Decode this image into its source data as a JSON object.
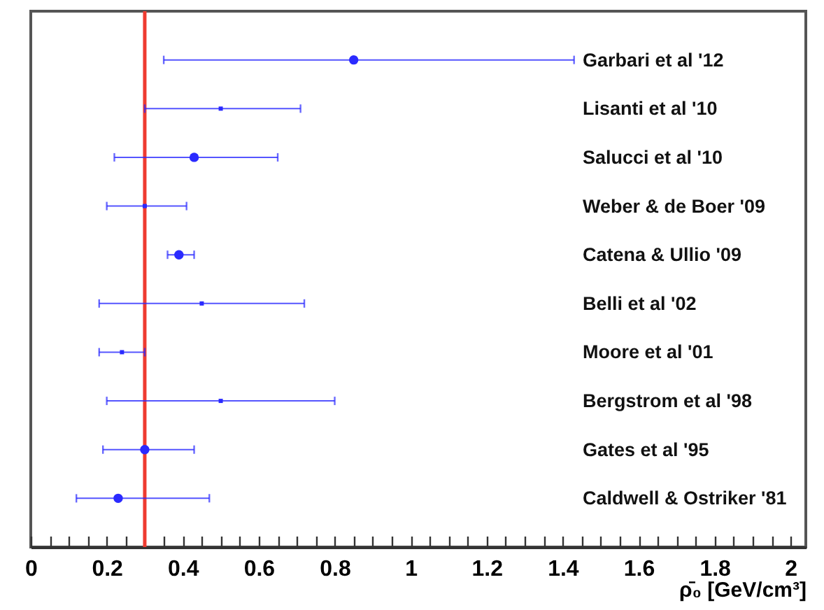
{
  "chart_data": {
    "type": "scatter",
    "xlabel": "ρ̄₀ [GeV/cm³]",
    "categories": [
      "Garbari et al '12",
      "Lisanti et al '10",
      "Salucci et al '10",
      "Weber & de Boer '09",
      "Catena & Ullio '09",
      "Belli et al '02",
      "Moore et al '01",
      "Bergstrom et al '98",
      "Gates et al '95",
      "Caldwell & Ostriker '81"
    ],
    "series": [
      {
        "color": "#2a2aff",
        "marker": "circle",
        "values": [
          0.85,
          null,
          0.43,
          null,
          0.39,
          null,
          null,
          null,
          0.3,
          0.23
        ],
        "errors": [
          [
            0.35,
            1.43
          ],
          null,
          [
            0.22,
            0.65
          ],
          null,
          [
            0.36,
            0.43
          ],
          null,
          null,
          null,
          [
            0.19,
            0.43
          ],
          [
            0.12,
            0.47
          ]
        ]
      },
      {
        "color": "#2a2aff",
        "marker": "square",
        "values": [
          null,
          0.5,
          null,
          0.3,
          null,
          0.45,
          0.24,
          0.5,
          null,
          null
        ],
        "errors": [
          null,
          [
            0.3,
            0.71
          ],
          null,
          [
            0.2,
            0.41
          ],
          null,
          [
            0.18,
            0.72
          ],
          [
            0.18,
            0.3
          ],
          [
            0.2,
            0.8
          ],
          null,
          null
        ]
      }
    ],
    "ref_lines": [
      {
        "axis": "x",
        "value": 0.3,
        "color": "#ee3b30"
      }
    ],
    "xlim": [
      0,
      2.04
    ],
    "xticks": [
      0,
      {
        "value": 0.05,
        "label": null
      },
      {
        "value": 0.1,
        "label": null
      },
      {
        "value": 0.15,
        "label": null
      },
      0.2,
      {
        "value": 0.25,
        "label": null
      },
      {
        "value": 0.3,
        "label": null
      },
      {
        "value": 0.35,
        "label": null
      },
      0.4,
      {
        "value": 0.45,
        "label": null
      },
      {
        "value": 0.5,
        "label": null
      },
      {
        "value": 0.55,
        "label": null
      },
      0.6,
      {
        "value": 0.65,
        "label": null
      },
      {
        "value": 0.7,
        "label": null
      },
      {
        "value": 0.75,
        "label": null
      },
      0.8,
      {
        "value": 0.85,
        "label": null
      },
      {
        "value": 0.9,
        "label": null
      },
      {
        "value": 0.95,
        "label": null
      },
      1,
      {
        "value": 1.05,
        "label": null
      },
      {
        "value": 1.1,
        "label": null
      },
      {
        "value": 1.15,
        "label": null
      },
      1.2,
      {
        "value": 1.25,
        "label": null
      },
      {
        "value": 1.3,
        "label": null
      },
      {
        "value": 1.35,
        "label": null
      },
      1.4,
      {
        "value": 1.45,
        "label": null
      },
      {
        "value": 1.5,
        "label": null
      },
      {
        "value": 1.55,
        "label": null
      },
      1.6,
      {
        "value": 1.65,
        "label": null
      },
      {
        "value": 1.7,
        "label": null
      },
      {
        "value": 1.75,
        "label": null
      },
      1.8,
      {
        "value": 1.85,
        "label": null
      },
      {
        "value": 1.9,
        "label": null
      },
      {
        "value": 1.95,
        "label": null
      },
      2
    ],
    "grid": false,
    "orientation": "horizontal"
  }
}
